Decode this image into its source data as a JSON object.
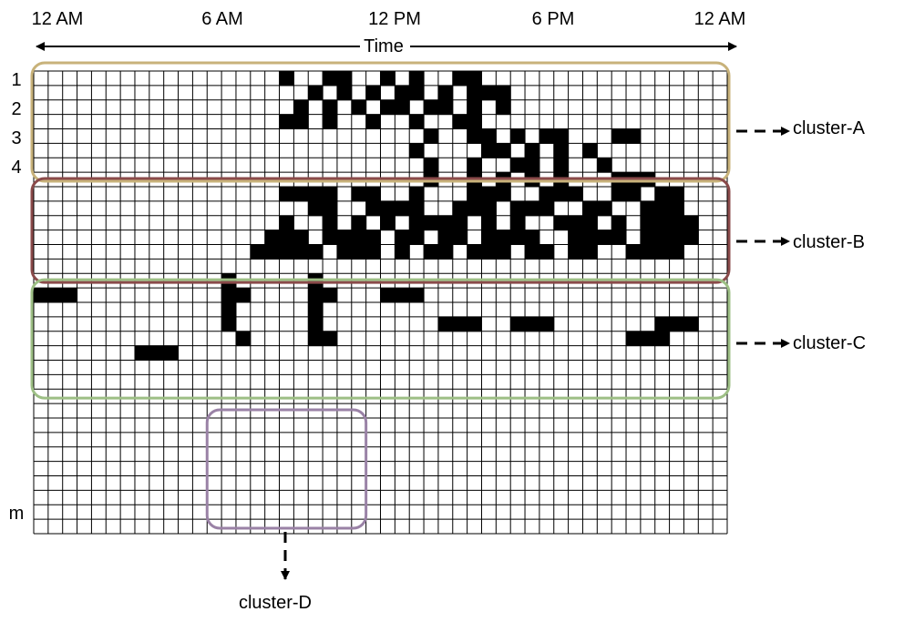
{
  "time_labels": [
    "12 AM",
    "6 AM",
    "12 PM",
    "6 PM",
    "12 AM"
  ],
  "axis_label": "Time",
  "row_labels": [
    "1",
    "2",
    "3",
    "4",
    "m"
  ],
  "clusters": [
    {
      "label": "cluster-A",
      "color": "#c8b27a"
    },
    {
      "label": "cluster-B",
      "color": "#8a4a4a"
    },
    {
      "label": "cluster-C",
      "color": "#9dbf85"
    },
    {
      "label": "cluster-D",
      "color": "#9a82a6"
    }
  ],
  "grid": {
    "columns": 48,
    "rows": 32,
    "active_cells": [
      [
        0,
        [
          17,
          20,
          21,
          24,
          26,
          29,
          30
        ]
      ],
      [
        1,
        [
          19,
          21,
          23,
          25,
          26,
          28,
          30,
          31,
          32
        ]
      ],
      [
        2,
        [
          18,
          20,
          22,
          24,
          25,
          27,
          28,
          30,
          32
        ]
      ],
      [
        3,
        [
          17,
          18,
          20,
          23,
          26,
          29,
          30
        ]
      ],
      [
        4,
        [
          27,
          30,
          31,
          33,
          35,
          36,
          40,
          41
        ]
      ],
      [
        5,
        [
          26,
          31,
          32,
          34,
          36,
          38
        ]
      ],
      [
        6,
        [
          27,
          30,
          33,
          34,
          36,
          39
        ]
      ],
      [
        7,
        [
          27,
          30,
          32,
          34,
          36,
          40,
          41,
          42
        ]
      ],
      [
        8,
        [
          17,
          18,
          19,
          20,
          22,
          23,
          26,
          30,
          31,
          32,
          35,
          36,
          37,
          40,
          41,
          43,
          44
        ]
      ],
      [
        9,
        [
          19,
          20,
          23,
          24,
          25,
          26,
          29,
          30,
          31,
          33,
          34,
          35,
          38,
          39,
          42,
          43,
          44
        ]
      ],
      [
        10,
        [
          17,
          20,
          22,
          24,
          26,
          27,
          28,
          29,
          31,
          33,
          36,
          37,
          38,
          40,
          42,
          43,
          44,
          45
        ]
      ],
      [
        11,
        [
          16,
          17,
          18,
          20,
          21,
          22,
          23,
          25,
          26,
          28,
          29,
          31,
          32,
          33,
          34,
          37,
          38,
          39,
          40,
          42,
          43,
          44,
          45
        ]
      ],
      [
        12,
        [
          15,
          16,
          17,
          18,
          19,
          21,
          22,
          23,
          25,
          27,
          28,
          30,
          31,
          32,
          34,
          35,
          37,
          38,
          41,
          42,
          43,
          44
        ]
      ],
      [
        14,
        [
          13,
          19
        ]
      ],
      [
        15,
        [
          0,
          1,
          2,
          13,
          14,
          19,
          20,
          24,
          25,
          26
        ]
      ],
      [
        16,
        [
          13,
          19
        ]
      ],
      [
        17,
        [
          13,
          19,
          28,
          29,
          30,
          33,
          34,
          35,
          43,
          44,
          45
        ]
      ],
      [
        18,
        [
          14,
          19,
          20,
          41,
          42,
          43
        ]
      ],
      [
        19,
        [
          7,
          8,
          9
        ]
      ]
    ]
  },
  "cluster_regions": [
    {
      "cluster": 0,
      "col_span": [
        0,
        48
      ],
      "row_span": [
        0,
        8
      ]
    },
    {
      "cluster": 1,
      "col_span": [
        0,
        48
      ],
      "row_span": [
        8,
        15
      ]
    },
    {
      "cluster": 2,
      "col_span": [
        0,
        48
      ],
      "row_span": [
        15,
        23
      ]
    },
    {
      "cluster": 3,
      "col_span": [
        12,
        23
      ],
      "row_span": [
        24,
        32
      ]
    }
  ]
}
